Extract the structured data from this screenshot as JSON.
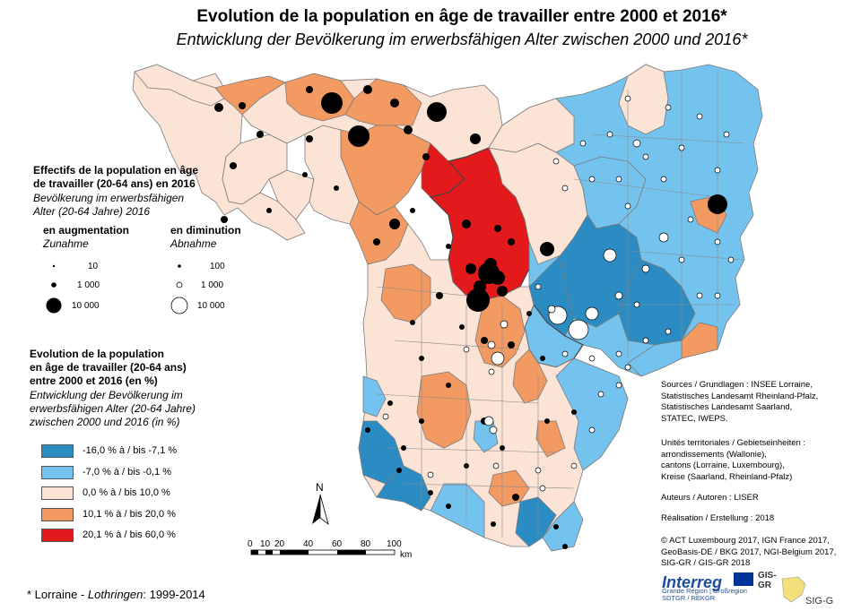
{
  "title": {
    "fr": "Evolution de la population en âge de travailler entre 2000 et 2016*",
    "de": "Entwicklung der Bevölkerung im erwerbsfähigen Alter zwischen 2000 und 2016*"
  },
  "legend_size": {
    "title_fr_1": "Effectifs de la population en âge",
    "title_fr_2": "de travailler (20-64 ans) en 2016",
    "title_de_1": "Bevölkerung im erwerbsfähigen",
    "title_de_2": "Alter (20-64 Jahre) 2016",
    "increase_fr": "en augmentation",
    "increase_de": "Zunahme",
    "decrease_fr": "en diminution",
    "decrease_de": "Abnahme",
    "increase_values": [
      "10",
      "1 000",
      "10 000"
    ],
    "decrease_values": [
      "100",
      "1 000",
      "10 000"
    ]
  },
  "legend_evolution": {
    "title_fr_1": "Evolution de la population",
    "title_fr_2": "en âge de travailler (20-64 ans)",
    "title_fr_3": "entre 2000 et 2016 (en %)",
    "title_de_1": "Entwicklung der Bevölkerung im",
    "title_de_2": "erwerbsfähigen Alter (20-64 Jahre)",
    "title_de_3": "zwischen 2000 und 2016 (in %)",
    "classes": [
      {
        "label": "-16,0 % à / bis -7,1 %",
        "color": "#2b8cc4"
      },
      {
        "label": "-7,0 % à / bis -0,1 %",
        "color": "#74c3ee"
      },
      {
        "label": "0,0 % à / bis 10,0 %",
        "color": "#fbe3d6"
      },
      {
        "label": "10,1 % à / bis 20,0 %",
        "color": "#f39a63"
      },
      {
        "label": "20,1 % à / bis 60,0 %",
        "color": "#e3191c"
      }
    ]
  },
  "north_label": "N",
  "scale": {
    "ticks": [
      "0",
      "10",
      "20",
      "40",
      "60",
      "80",
      "100"
    ],
    "unit": "km"
  },
  "sources": [
    "Sources / Grundlagen : INSEE Lorraine,",
    "Statistisches Landesamt Rheinland-Pfalz,",
    "Statistisches Landesamt Saarland,",
    "STATEC, IWEPS."
  ],
  "units": [
    "Unités territoriales / Gebietseinheiten :",
    "arrondissements (Wallonie),",
    "cantons (Lorraine, Luxembourg),",
    "Kreise (Saarland, Rheinland-Pfalz)"
  ],
  "authors": "Auteurs / Autoren : LISER",
  "realisation": "Réalisation / Erstellung : 2018",
  "copyright": [
    "© ACT Luxembourg 2017, IGN France 2017,",
    "GeoBasis-DE / BKG 2017, NGI-Belgium 2017,",
    "SIG-GR / GIS-GR 2018"
  ],
  "footnote_prefix": "* Lorraine - ",
  "footnote_de": "Lothringen",
  "footnote_suffix": ": 1999-2014",
  "logos": {
    "interreg": "Interreg",
    "interreg_sub1": "Grande Région | Großregion",
    "interreg_sub2": "SDTGR / REKGR",
    "gis1": "GIS-GR",
    "gis2": "SIG-GR"
  },
  "colors": {
    "strong_decrease": "#2b8cc4",
    "decrease": "#74c3ee",
    "low_increase": "#fbe3d6",
    "increase": "#f39a63",
    "strong_increase": "#e3191c",
    "boundary": "#7a7a7a"
  }
}
